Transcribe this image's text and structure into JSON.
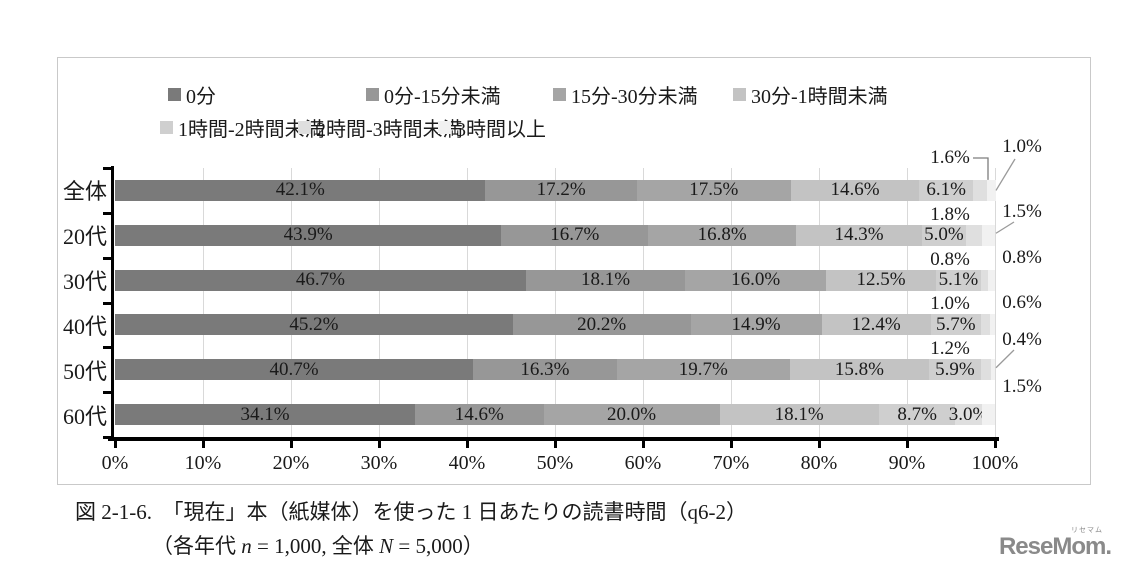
{
  "chart_data": {
    "type": "bar",
    "orientation": "horizontal",
    "stacked": true,
    "grid": true,
    "legend_position": "top",
    "xlim": [
      0,
      100
    ],
    "value_suffix": "%",
    "categories": [
      "全体",
      "20代",
      "30代",
      "40代",
      "50代",
      "60代"
    ],
    "series": [
      {
        "name": "0分",
        "color": "#7a7a7a",
        "values": [
          42.1,
          43.9,
          46.7,
          45.2,
          40.7,
          34.1
        ]
      },
      {
        "name": "0分-15分未満",
        "color": "#979797",
        "values": [
          17.2,
          16.7,
          18.1,
          20.2,
          16.3,
          14.6
        ]
      },
      {
        "name": "15分-30分未満",
        "color": "#a5a5a5",
        "values": [
          17.5,
          16.8,
          16.0,
          14.9,
          19.7,
          20.0
        ]
      },
      {
        "name": "30分-1時間未満",
        "color": "#c3c3c3",
        "values": [
          14.6,
          14.3,
          12.5,
          12.4,
          15.8,
          18.1
        ]
      },
      {
        "name": "1時間-2時間未満",
        "color": "#cfcfcf",
        "values": [
          6.1,
          5.0,
          5.1,
          5.7,
          5.9,
          8.7
        ]
      },
      {
        "name": "2時間-3時間未満",
        "color": "#dfdfdf",
        "values": [
          1.6,
          1.8,
          0.8,
          1.0,
          1.2,
          3.0
        ]
      },
      {
        "name": "3時間以上",
        "color": "#f1f1f1",
        "values": [
          1.0,
          1.5,
          0.8,
          0.6,
          0.4,
          1.5
        ]
      }
    ],
    "x_ticks": [
      "0%",
      "10%",
      "20%",
      "30%",
      "40%",
      "50%",
      "60%",
      "70%",
      "80%",
      "90%",
      "100%"
    ]
  },
  "caption": {
    "line1": "図 2-1-6.　「現在」本（紙媒体）を使った 1 日あたりの読書時間（q6-2）",
    "line2_prefix": "（各年代 ",
    "line2_n": "n",
    "line2_mid": " = 1,000,  全体 ",
    "line2_N": "N",
    "line2_suffix": " = 5,000）"
  },
  "logo": {
    "text": "ReseMom.",
    "ruby": "リセマム",
    "color": "#8a8a8a"
  }
}
